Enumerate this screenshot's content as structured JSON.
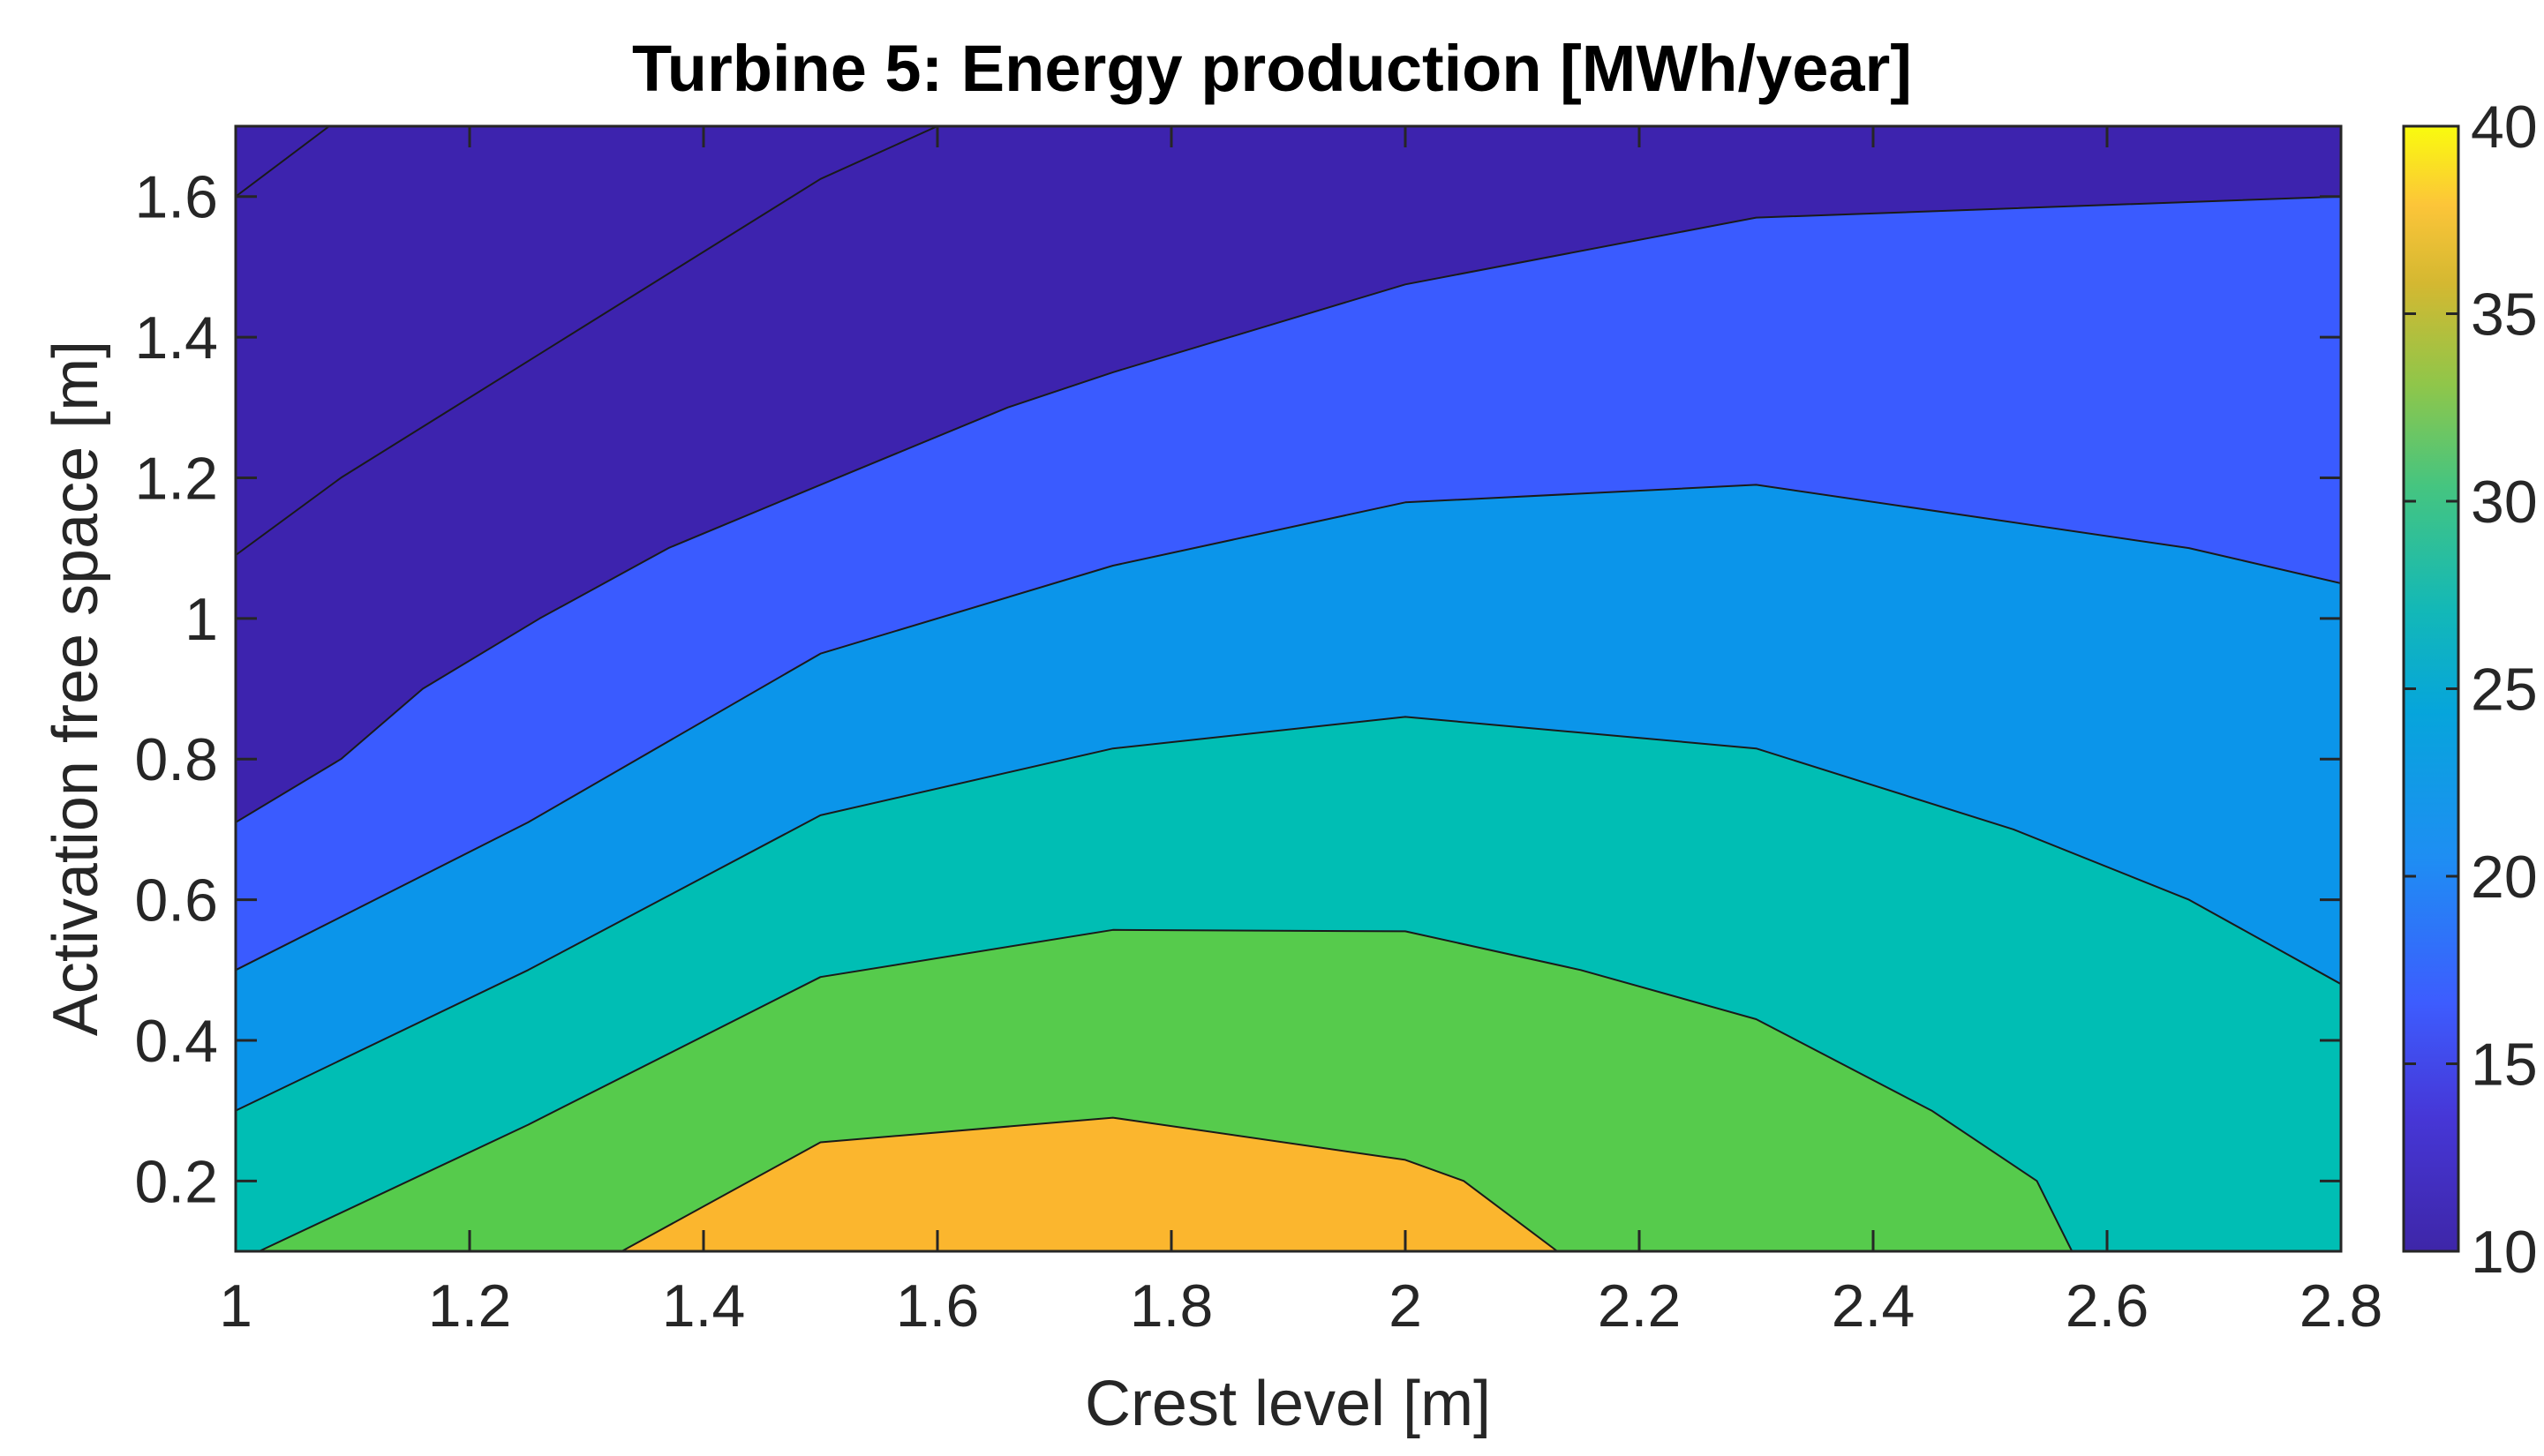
{
  "chart_data": {
    "type": "contour",
    "title": "Turbine 5: Energy production [MWh/year]",
    "xlabel": "Crest level [m]",
    "ylabel": "Activation free space [m]",
    "xlim": [
      1,
      2.8
    ],
    "ylim": [
      0.1,
      1.7
    ],
    "xticks": [
      "1",
      "1.2",
      "1.4",
      "1.6",
      "1.8",
      "2",
      "2.2",
      "2.4",
      "2.6",
      "2.8"
    ],
    "yticks": [
      "0.2",
      "0.4",
      "0.6",
      "0.8",
      "1",
      "1.2",
      "1.4",
      "1.6"
    ],
    "colorbar": {
      "lim": [
        10,
        40
      ],
      "ticks": [
        "10",
        "15",
        "20",
        "25",
        "30",
        "35",
        "40"
      ]
    },
    "levels": [
      {
        "range": [
          10,
          15
        ],
        "color": "#3d23ae"
      },
      {
        "range": [
          15,
          20
        ],
        "color": "#3a5bff"
      },
      {
        "range": [
          20,
          25
        ],
        "color": "#0b95ea"
      },
      {
        "range": [
          25,
          30
        ],
        "color": "#00beb4"
      },
      {
        "range": [
          30,
          35
        ],
        "color": "#56cb4c"
      },
      {
        "range": [
          35,
          40
        ],
        "color": "#fbb62e"
      }
    ],
    "contour_lines": [
      {
        "level": 35,
        "points": [
          [
            1.33,
            0.1
          ],
          [
            1.5,
            0.255
          ],
          [
            1.75,
            0.29
          ],
          [
            2.0,
            0.23
          ],
          [
            2.05,
            0.2
          ],
          [
            2.13,
            0.1
          ]
        ]
      },
      {
        "level": 30,
        "points": [
          [
            1.02,
            0.1
          ],
          [
            1.25,
            0.28
          ],
          [
            1.5,
            0.49
          ],
          [
            1.75,
            0.557
          ],
          [
            2.0,
            0.555
          ],
          [
            2.15,
            0.5
          ],
          [
            2.3,
            0.43
          ],
          [
            2.45,
            0.3
          ],
          [
            2.54,
            0.2
          ],
          [
            2.57,
            0.1
          ]
        ]
      },
      {
        "level": 25,
        "points": [
          [
            1.0,
            0.3
          ],
          [
            1.25,
            0.5
          ],
          [
            1.5,
            0.72
          ],
          [
            1.75,
            0.815
          ],
          [
            2.0,
            0.86
          ],
          [
            2.3,
            0.815
          ],
          [
            2.52,
            0.7
          ],
          [
            2.67,
            0.6
          ],
          [
            2.8,
            0.48
          ]
        ]
      },
      {
        "level": 20,
        "points": [
          [
            1.0,
            0.5
          ],
          [
            1.25,
            0.71
          ],
          [
            1.5,
            0.95
          ],
          [
            1.75,
            1.075
          ],
          [
            2.0,
            1.165
          ],
          [
            2.3,
            1.19
          ],
          [
            2.67,
            1.1
          ],
          [
            2.8,
            1.05
          ]
        ]
      },
      {
        "level": 15,
        "points": [
          [
            1.0,
            0.71
          ],
          [
            1.09,
            0.8
          ],
          [
            1.16,
            0.9
          ],
          [
            1.26,
            1.0
          ],
          [
            1.37,
            1.1
          ],
          [
            1.5,
            1.19
          ],
          [
            1.66,
            1.3
          ],
          [
            1.75,
            1.35
          ],
          [
            1.85,
            1.4
          ],
          [
            2.0,
            1.475
          ],
          [
            2.3,
            1.57
          ],
          [
            2.8,
            1.6
          ]
        ]
      },
      {
        "level": 12.5,
        "points": [
          [
            1.0,
            1.09
          ],
          [
            1.09,
            1.2
          ],
          [
            1.5,
            1.625
          ],
          [
            1.6,
            1.7
          ]
        ]
      },
      {
        "level": 11,
        "points": [
          [
            1.0,
            1.6
          ],
          [
            1.08,
            1.7
          ]
        ]
      }
    ]
  }
}
